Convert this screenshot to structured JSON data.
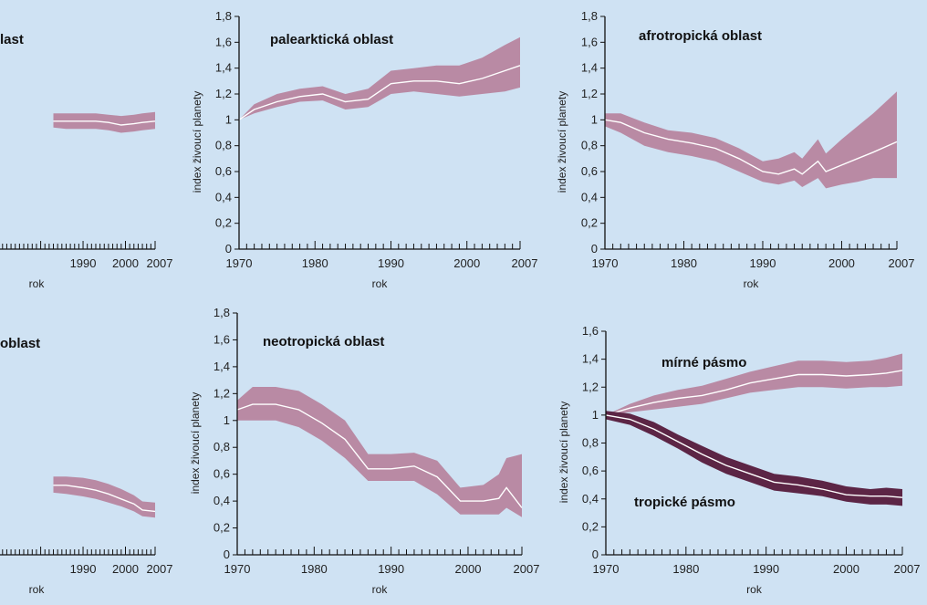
{
  "colors": {
    "background": "#cfe2f3",
    "band_light": "#b98aa4",
    "band_dark": "#5c2545",
    "center_line": "#ffffff",
    "axis": "#111111"
  },
  "chart_data": [
    {
      "id": "left-top",
      "type": "area",
      "title": "last",
      "xlabel": "rok",
      "ylabel": "",
      "x_tick_labels": [
        "1990",
        "2000",
        "2007"
      ],
      "ylim": [
        0,
        1.8
      ],
      "series": [
        {
          "x": [
            1983,
            1986,
            1990,
            1993,
            1996,
            1999,
            2002,
            2004,
            2007
          ],
          "lower": [
            0.94,
            0.93,
            0.93,
            0.93,
            0.92,
            0.9,
            0.91,
            0.92,
            0.93
          ],
          "mid": [
            0.99,
            0.99,
            0.99,
            0.99,
            0.98,
            0.96,
            0.97,
            0.98,
            0.99
          ],
          "upper": [
            1.05,
            1.05,
            1.05,
            1.05,
            1.04,
            1.03,
            1.04,
            1.05,
            1.06
          ]
        }
      ]
    },
    {
      "id": "left-bottom",
      "type": "area",
      "title": "oblast",
      "xlabel": "rok",
      "ylabel": "",
      "x_tick_labels": [
        "1990",
        "2000",
        "2007"
      ],
      "ylim": [
        0,
        1.8
      ],
      "series": [
        {
          "x": [
            1983,
            1986,
            1990,
            1993,
            1996,
            1999,
            2002,
            2004,
            2007
          ],
          "lower": [
            0.5,
            0.49,
            0.47,
            0.45,
            0.42,
            0.39,
            0.35,
            0.31,
            0.3
          ],
          "mid": [
            0.56,
            0.56,
            0.54,
            0.52,
            0.49,
            0.45,
            0.41,
            0.36,
            0.35
          ],
          "upper": [
            0.63,
            0.63,
            0.62,
            0.6,
            0.57,
            0.53,
            0.48,
            0.43,
            0.42
          ]
        }
      ]
    },
    {
      "id": "palearctic",
      "type": "area",
      "title": "palearktická oblast",
      "xlabel": "rok",
      "ylabel": "index živoucí planety",
      "y_tick_labels": [
        "0",
        "0,2",
        "0,4",
        "0,6",
        "0,8",
        "1",
        "1,2",
        "1,4",
        "1,6",
        "1,8"
      ],
      "x_tick_labels": [
        "1970",
        "1980",
        "1990",
        "2000",
        "2007"
      ],
      "ylim": [
        0,
        1.8
      ],
      "series": [
        {
          "x": [
            1970,
            1972,
            1975,
            1978,
            1981,
            1984,
            1987,
            1990,
            1993,
            1996,
            1999,
            2002,
            2005,
            2007
          ],
          "lower": [
            1.0,
            1.05,
            1.1,
            1.14,
            1.15,
            1.08,
            1.1,
            1.2,
            1.22,
            1.2,
            1.18,
            1.2,
            1.22,
            1.25
          ],
          "mid": [
            1.0,
            1.08,
            1.14,
            1.18,
            1.2,
            1.14,
            1.16,
            1.28,
            1.3,
            1.3,
            1.28,
            1.32,
            1.38,
            1.42
          ],
          "upper": [
            1.0,
            1.12,
            1.2,
            1.24,
            1.26,
            1.2,
            1.24,
            1.38,
            1.4,
            1.42,
            1.42,
            1.48,
            1.58,
            1.64
          ]
        }
      ]
    },
    {
      "id": "afrotropical",
      "type": "area",
      "title": "afrotropická oblast",
      "xlabel": "rok",
      "ylabel": "index živoucí planety",
      "y_tick_labels": [
        "0",
        "0,2",
        "0,4",
        "0,6",
        "0,8",
        "1",
        "1,2",
        "1,4",
        "1,6",
        "1,8"
      ],
      "x_tick_labels": [
        "1970",
        "1980",
        "1990",
        "2000",
        "2007"
      ],
      "ylim": [
        0,
        1.8
      ],
      "series": [
        {
          "x": [
            1970,
            1972,
            1975,
            1978,
            1981,
            1984,
            1987,
            1990,
            1992,
            1994,
            1995,
            1997,
            1998,
            2000,
            2002,
            2004,
            2007
          ],
          "lower": [
            0.95,
            0.9,
            0.8,
            0.75,
            0.72,
            0.68,
            0.6,
            0.52,
            0.5,
            0.53,
            0.48,
            0.55,
            0.47,
            0.5,
            0.52,
            0.55,
            0.55
          ],
          "mid": [
            1.0,
            0.98,
            0.9,
            0.85,
            0.82,
            0.78,
            0.7,
            0.6,
            0.58,
            0.62,
            0.58,
            0.68,
            0.6,
            0.65,
            0.7,
            0.75,
            0.83
          ],
          "upper": [
            1.05,
            1.05,
            0.98,
            0.92,
            0.9,
            0.86,
            0.78,
            0.68,
            0.7,
            0.75,
            0.7,
            0.85,
            0.74,
            0.85,
            0.95,
            1.05,
            1.22
          ]
        }
      ]
    },
    {
      "id": "neotropical",
      "type": "area",
      "title": "neotropická oblast",
      "xlabel": "rok",
      "ylabel": "index živoucí planety",
      "y_tick_labels": [
        "0",
        "0,2",
        "0,4",
        "0,6",
        "0,8",
        "1",
        "1,2",
        "1,4",
        "1,6",
        "1,8"
      ],
      "x_tick_labels": [
        "1970",
        "1980",
        "1990",
        "2000",
        "2007"
      ],
      "ylim": [
        0,
        1.8
      ],
      "series": [
        {
          "x": [
            1970,
            1972,
            1975,
            1978,
            1981,
            1984,
            1987,
            1990,
            1993,
            1996,
            1999,
            2002,
            2004,
            2005,
            2007
          ],
          "lower": [
            1.0,
            1.0,
            1.0,
            0.95,
            0.85,
            0.72,
            0.55,
            0.55,
            0.55,
            0.45,
            0.3,
            0.3,
            0.3,
            0.35,
            0.28
          ],
          "mid": [
            1.08,
            1.12,
            1.12,
            1.08,
            0.98,
            0.86,
            0.64,
            0.64,
            0.66,
            0.58,
            0.4,
            0.4,
            0.42,
            0.5,
            0.35
          ],
          "upper": [
            1.15,
            1.25,
            1.25,
            1.22,
            1.12,
            1.0,
            0.75,
            0.75,
            0.76,
            0.7,
            0.5,
            0.52,
            0.6,
            0.72,
            0.75
          ]
        }
      ]
    },
    {
      "id": "zones",
      "type": "area",
      "title": "",
      "xlabel": "rok",
      "ylabel": "index živoucí planety",
      "y_tick_labels": [
        "0",
        "0,2",
        "0,4",
        "0,6",
        "0,8",
        "1",
        "1,2",
        "1,4",
        "1,6"
      ],
      "x_tick_labels": [
        "1970",
        "1980",
        "1990",
        "2000",
        "2007"
      ],
      "ylim": [
        0,
        1.6
      ],
      "annotations": [
        "mírné pásmo",
        "tropické pásmo"
      ],
      "series": [
        {
          "name": "mírné pásmo",
          "color": "light",
          "x": [
            1970,
            1973,
            1976,
            1979,
            1982,
            1985,
            1988,
            1991,
            1994,
            1997,
            2000,
            2003,
            2005,
            2007
          ],
          "lower": [
            1.0,
            1.02,
            1.04,
            1.06,
            1.08,
            1.12,
            1.16,
            1.18,
            1.2,
            1.2,
            1.19,
            1.2,
            1.2,
            1.21
          ],
          "mid": [
            1.0,
            1.05,
            1.09,
            1.12,
            1.14,
            1.18,
            1.23,
            1.26,
            1.29,
            1.29,
            1.28,
            1.29,
            1.3,
            1.32
          ],
          "upper": [
            1.0,
            1.08,
            1.14,
            1.18,
            1.21,
            1.26,
            1.31,
            1.35,
            1.39,
            1.39,
            1.38,
            1.39,
            1.41,
            1.44
          ]
        },
        {
          "name": "tropické pásmo",
          "color": "dark",
          "x": [
            1970,
            1973,
            1976,
            1979,
            1982,
            1985,
            1988,
            1991,
            1994,
            1997,
            2000,
            2003,
            2005,
            2007
          ],
          "lower": [
            0.97,
            0.93,
            0.85,
            0.76,
            0.66,
            0.58,
            0.52,
            0.46,
            0.44,
            0.42,
            0.38,
            0.36,
            0.36,
            0.35
          ],
          "mid": [
            1.0,
            0.97,
            0.9,
            0.81,
            0.72,
            0.64,
            0.58,
            0.52,
            0.5,
            0.47,
            0.43,
            0.42,
            0.42,
            0.41
          ],
          "upper": [
            1.03,
            1.01,
            0.95,
            0.86,
            0.78,
            0.7,
            0.64,
            0.58,
            0.56,
            0.53,
            0.49,
            0.47,
            0.48,
            0.47
          ]
        }
      ]
    }
  ]
}
